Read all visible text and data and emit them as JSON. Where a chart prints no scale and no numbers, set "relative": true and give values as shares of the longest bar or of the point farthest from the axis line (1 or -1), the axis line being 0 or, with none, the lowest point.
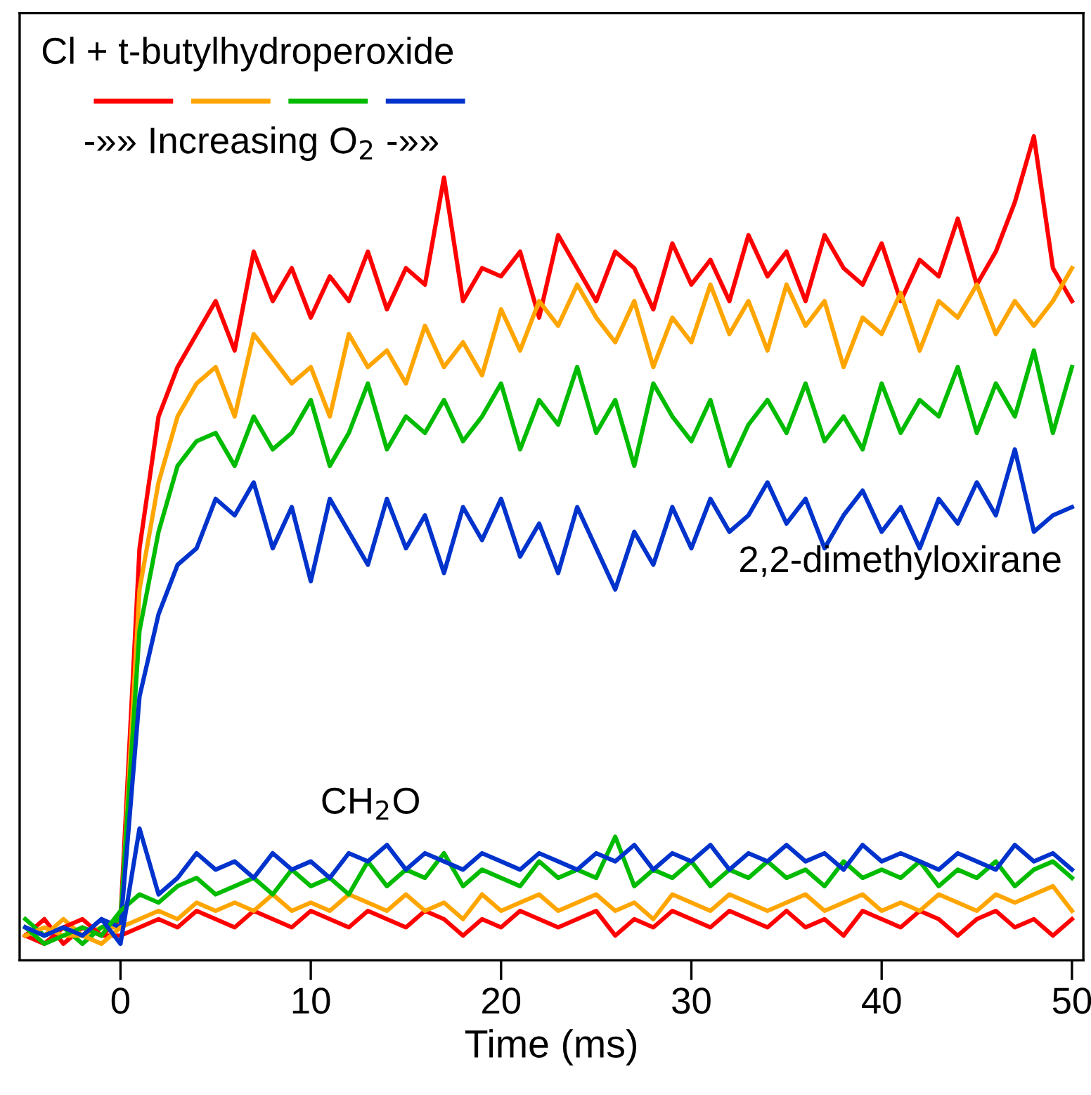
{
  "chart_data": {
    "type": "line",
    "relative": true,
    "xlabel": "Time (ms)",
    "legend_title": "Cl + t-butylhydroperoxide",
    "grid": false,
    "marker": "none",
    "line_style": "solid",
    "xlim": [
      -5.3,
      50.6
    ],
    "xticks": [
      0,
      10,
      20,
      30,
      40,
      50
    ],
    "x": [
      -5,
      -4,
      -3,
      -2,
      -1,
      0,
      1,
      2,
      3,
      4,
      5,
      6,
      7,
      8,
      9,
      10,
      11,
      12,
      13,
      14,
      15,
      16,
      17,
      18,
      19,
      20,
      21,
      22,
      23,
      24,
      25,
      26,
      27,
      28,
      29,
      30,
      31,
      32,
      33,
      34,
      35,
      36,
      37,
      38,
      39,
      40,
      41,
      42,
      43,
      44,
      45,
      46,
      47,
      48,
      49,
      50
    ],
    "annotations": [
      "-»» Increasing O$_{2}$ -»»",
      "2,2-dimethyloxirane",
      "CH$_{2}$O"
    ],
    "series": [
      {
        "color": "#ff0000",
        "values": [
          0.03,
          0.05,
          0.02,
          0.04,
          0.03,
          0.05,
          0.5,
          0.66,
          0.72,
          0.76,
          0.8,
          0.74,
          0.86,
          0.8,
          0.84,
          0.78,
          0.83,
          0.8,
          0.86,
          0.79,
          0.84,
          0.82,
          0.95,
          0.8,
          0.84,
          0.83,
          0.86,
          0.78,
          0.88,
          0.84,
          0.8,
          0.86,
          0.84,
          0.79,
          0.87,
          0.82,
          0.85,
          0.8,
          0.88,
          0.83,
          0.86,
          0.8,
          0.88,
          0.84,
          0.82,
          0.87,
          0.8,
          0.85,
          0.83,
          0.9,
          0.82,
          0.86,
          0.92,
          1.0,
          0.84,
          0.8
        ]
      },
      {
        "color": "#ffa500",
        "values": [
          0.04,
          0.03,
          0.05,
          0.03,
          0.04,
          0.04,
          0.45,
          0.58,
          0.66,
          0.7,
          0.72,
          0.66,
          0.76,
          0.73,
          0.7,
          0.72,
          0.66,
          0.76,
          0.72,
          0.74,
          0.7,
          0.77,
          0.72,
          0.75,
          0.71,
          0.79,
          0.74,
          0.8,
          0.77,
          0.82,
          0.78,
          0.75,
          0.8,
          0.72,
          0.78,
          0.75,
          0.82,
          0.76,
          0.8,
          0.74,
          0.82,
          0.77,
          0.8,
          0.72,
          0.78,
          0.76,
          0.81,
          0.74,
          0.8,
          0.78,
          0.82,
          0.76,
          0.8,
          0.77,
          0.8,
          0.84
        ]
      },
      {
        "color": "#00bb00",
        "values": [
          0.05,
          0.03,
          0.04,
          0.02,
          0.04,
          0.05,
          0.4,
          0.52,
          0.6,
          0.63,
          0.64,
          0.6,
          0.66,
          0.62,
          0.64,
          0.68,
          0.6,
          0.64,
          0.7,
          0.62,
          0.66,
          0.64,
          0.68,
          0.63,
          0.66,
          0.7,
          0.62,
          0.68,
          0.65,
          0.72,
          0.64,
          0.68,
          0.6,
          0.7,
          0.66,
          0.63,
          0.68,
          0.6,
          0.65,
          0.68,
          0.64,
          0.7,
          0.63,
          0.66,
          0.62,
          0.7,
          0.64,
          0.68,
          0.66,
          0.72,
          0.64,
          0.7,
          0.66,
          0.74,
          0.64,
          0.72
        ]
      },
      {
        "color": "#0033cc",
        "values": [
          0.04,
          0.03,
          0.04,
          0.03,
          0.05,
          0.04,
          0.32,
          0.42,
          0.48,
          0.5,
          0.56,
          0.54,
          0.58,
          0.5,
          0.55,
          0.46,
          0.56,
          0.52,
          0.48,
          0.56,
          0.5,
          0.54,
          0.47,
          0.55,
          0.51,
          0.56,
          0.49,
          0.53,
          0.47,
          0.55,
          0.5,
          0.45,
          0.52,
          0.48,
          0.55,
          0.5,
          0.56,
          0.52,
          0.54,
          0.58,
          0.53,
          0.56,
          0.5,
          0.54,
          0.57,
          0.52,
          0.55,
          0.5,
          0.56,
          0.53,
          0.58,
          0.54,
          0.62,
          0.52,
          0.54,
          0.55
        ]
      },
      {
        "color": "#ff0000",
        "values": [
          0.03,
          0.02,
          0.04,
          0.05,
          0.03,
          0.03,
          0.04,
          0.05,
          0.04,
          0.06,
          0.05,
          0.04,
          0.06,
          0.05,
          0.04,
          0.06,
          0.05,
          0.04,
          0.06,
          0.05,
          0.04,
          0.06,
          0.05,
          0.03,
          0.05,
          0.04,
          0.06,
          0.05,
          0.04,
          0.05,
          0.06,
          0.03,
          0.05,
          0.04,
          0.06,
          0.05,
          0.04,
          0.06,
          0.05,
          0.04,
          0.06,
          0.04,
          0.05,
          0.03,
          0.06,
          0.05,
          0.04,
          0.06,
          0.05,
          0.03,
          0.05,
          0.06,
          0.04,
          0.05,
          0.03,
          0.05
        ]
      },
      {
        "color": "#ffa500",
        "values": [
          0.03,
          0.04,
          0.03,
          0.03,
          0.02,
          0.04,
          0.05,
          0.06,
          0.05,
          0.07,
          0.06,
          0.07,
          0.06,
          0.08,
          0.06,
          0.07,
          0.06,
          0.08,
          0.07,
          0.06,
          0.08,
          0.06,
          0.07,
          0.05,
          0.08,
          0.06,
          0.07,
          0.08,
          0.06,
          0.07,
          0.08,
          0.06,
          0.07,
          0.05,
          0.08,
          0.07,
          0.06,
          0.08,
          0.07,
          0.06,
          0.07,
          0.08,
          0.06,
          0.07,
          0.08,
          0.06,
          0.07,
          0.06,
          0.08,
          0.07,
          0.06,
          0.08,
          0.07,
          0.08,
          0.09,
          0.06
        ]
      },
      {
        "color": "#00bb00",
        "values": [
          0.04,
          0.02,
          0.03,
          0.04,
          0.03,
          0.06,
          0.08,
          0.07,
          0.09,
          0.1,
          0.08,
          0.09,
          0.1,
          0.08,
          0.11,
          0.09,
          0.1,
          0.08,
          0.12,
          0.09,
          0.11,
          0.1,
          0.13,
          0.09,
          0.11,
          0.1,
          0.09,
          0.12,
          0.1,
          0.11,
          0.1,
          0.15,
          0.09,
          0.11,
          0.1,
          0.12,
          0.09,
          0.11,
          0.1,
          0.12,
          0.1,
          0.11,
          0.09,
          0.12,
          0.1,
          0.11,
          0.1,
          0.12,
          0.09,
          0.11,
          0.1,
          0.12,
          0.09,
          0.11,
          0.12,
          0.1
        ]
      },
      {
        "color": "#0033cc",
        "values": [
          0.04,
          0.03,
          0.04,
          0.03,
          0.05,
          0.02,
          0.16,
          0.08,
          0.1,
          0.13,
          0.11,
          0.12,
          0.1,
          0.13,
          0.11,
          0.12,
          0.1,
          0.13,
          0.12,
          0.14,
          0.11,
          0.13,
          0.12,
          0.11,
          0.13,
          0.12,
          0.11,
          0.13,
          0.12,
          0.11,
          0.13,
          0.12,
          0.14,
          0.11,
          0.13,
          0.12,
          0.14,
          0.11,
          0.13,
          0.12,
          0.14,
          0.12,
          0.13,
          0.11,
          0.14,
          0.12,
          0.13,
          0.12,
          0.11,
          0.13,
          0.12,
          0.11,
          0.14,
          0.12,
          0.13,
          0.11
        ]
      }
    ]
  }
}
